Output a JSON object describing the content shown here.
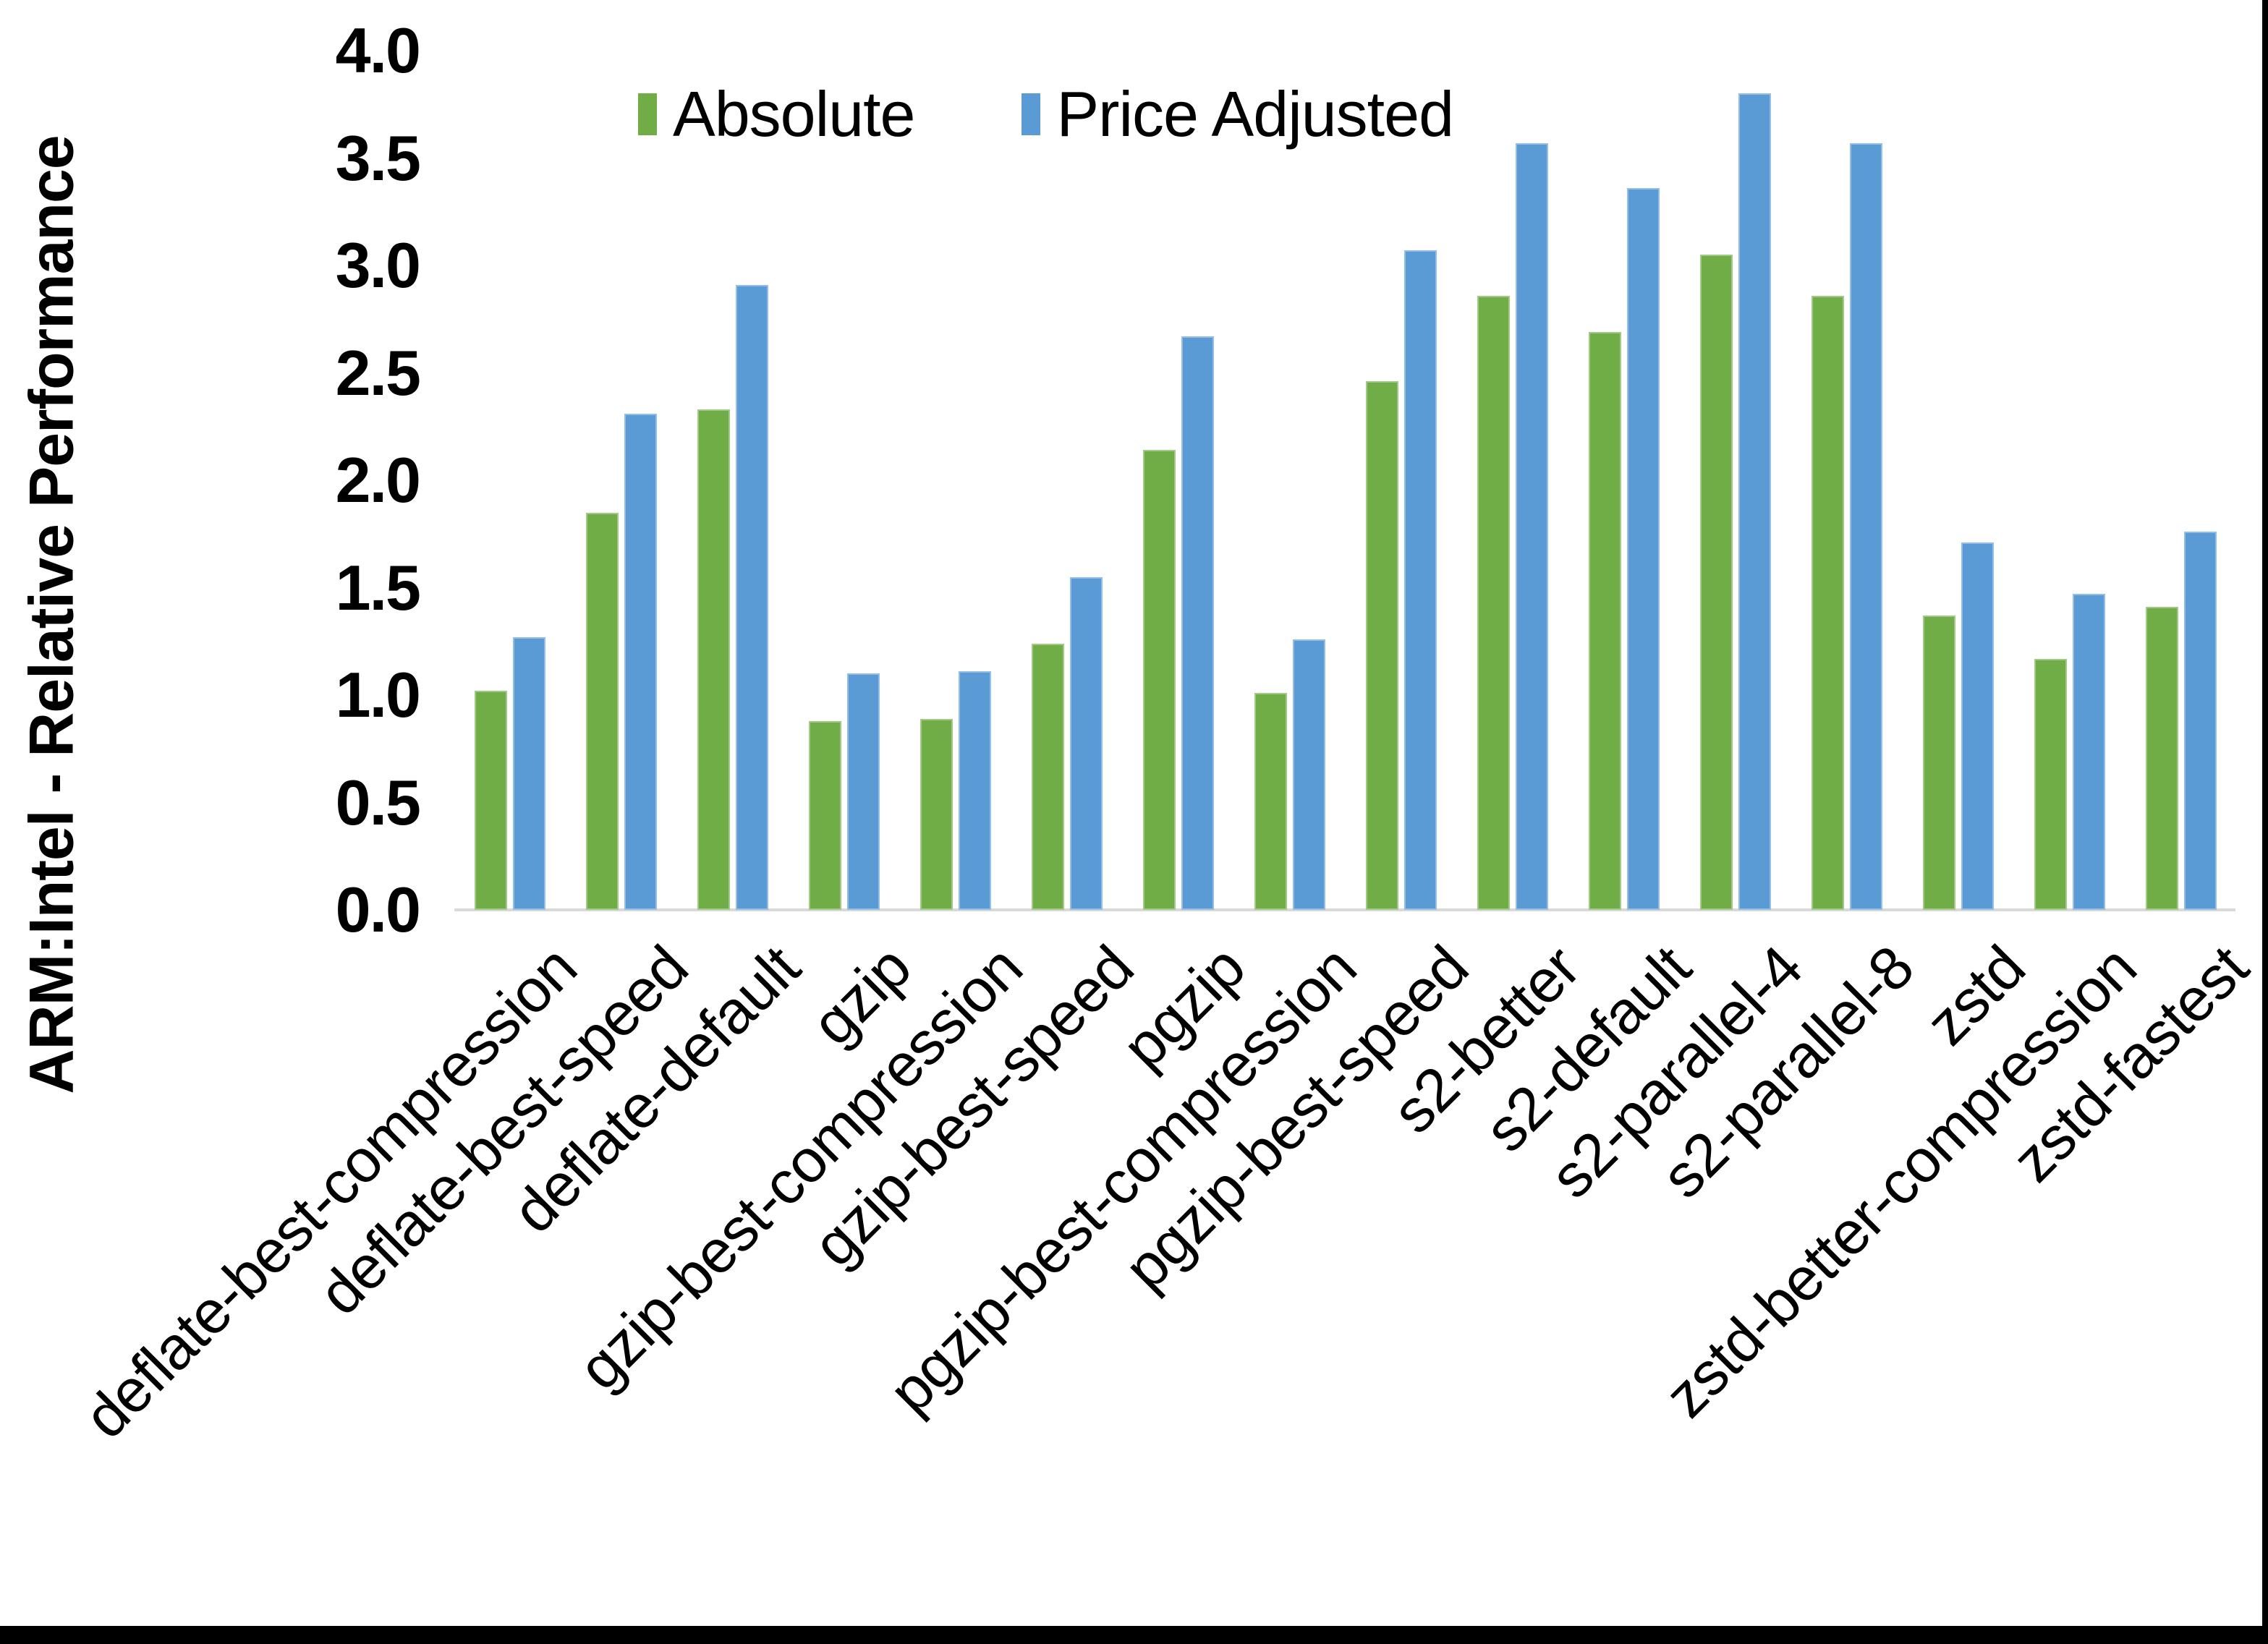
{
  "figure": {
    "background": "#ffffff",
    "frame_color": "#000000"
  },
  "colors": {
    "absolute_series": "#70AD47",
    "price_adjusted_series": "#5B9BD5",
    "axis_line": "#D9D9D9",
    "text": "#000000"
  },
  "chart_data": {
    "type": "bar",
    "title": "",
    "xlabel": "",
    "ylabel": "ARM:Intel - Relative Performance",
    "ylim": [
      0.0,
      4.0
    ],
    "ytick_step": 0.5,
    "yticks": [
      "4.0",
      "3.5",
      "3.0",
      "2.5",
      "2.0",
      "1.5",
      "1.0",
      "0.5",
      "0.0"
    ],
    "grid": false,
    "legend_position": "top-center",
    "categories": [
      "deflate-best-compression",
      "deflate-best-speed",
      "deflate-default",
      "gzip",
      "gzip-best-compression",
      "gzip-best-speed",
      "pgzip",
      "pgzip-best-compression",
      "pgzip-best-speed",
      "s2-better",
      "s2-default",
      "s2-parallel-4",
      "s2-parallel-8",
      "zstd",
      "zstd-better-compression",
      "zstd-fastest"
    ],
    "series": [
      {
        "name": "Absolute",
        "color": "#70AD47",
        "values": [
          1.02,
          1.85,
          2.33,
          0.88,
          0.89,
          1.24,
          2.14,
          1.01,
          2.46,
          2.86,
          2.69,
          3.05,
          2.86,
          1.37,
          1.17,
          1.41
        ]
      },
      {
        "name": "Price Adjusted",
        "color": "#5B9BD5",
        "values": [
          1.27,
          2.31,
          2.91,
          1.1,
          1.11,
          1.55,
          2.67,
          1.26,
          3.07,
          3.57,
          3.36,
          3.8,
          3.57,
          1.71,
          1.47,
          1.76
        ]
      }
    ]
  }
}
